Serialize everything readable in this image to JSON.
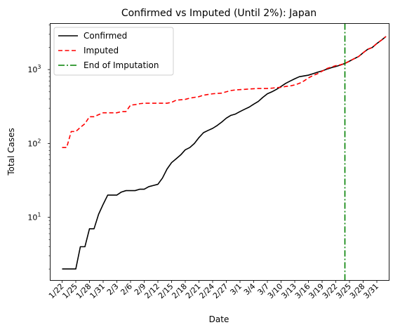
{
  "chart_data": {
    "type": "line",
    "title": "Confirmed vs Imputed (Until 2%): Japan",
    "xlabel": "Date",
    "ylabel": "Total Cases",
    "yscale": "log",
    "ylim": [
      1.4,
      4200
    ],
    "y_ticks": [
      {
        "value": 10,
        "base": "10",
        "exp": "1"
      },
      {
        "value": 100,
        "base": "10",
        "exp": "2"
      },
      {
        "value": 1000,
        "base": "10",
        "exp": "3"
      }
    ],
    "x_start": "1/22",
    "x_tick_labels": [
      "1/22",
      "1/25",
      "1/28",
      "1/31",
      "2/3",
      "2/6",
      "2/9",
      "2/12",
      "2/15",
      "2/18",
      "2/21",
      "2/24",
      "2/27",
      "3/1",
      "3/4",
      "3/7",
      "3/10",
      "3/13",
      "3/16",
      "3/19",
      "3/22",
      "3/25",
      "3/28",
      "3/31"
    ],
    "grid": false,
    "legend_position": "upper-left",
    "series": [
      {
        "name": "Confirmed",
        "color": "#000000",
        "style": "solid",
        "values": [
          2,
          2,
          2,
          2,
          4,
          4,
          7,
          7,
          11,
          15,
          20,
          20,
          20,
          22,
          23,
          23,
          23,
          24,
          24,
          26,
          27,
          28,
          34,
          45,
          55,
          62,
          70,
          82,
          88,
          100,
          120,
          140,
          150,
          160,
          175,
          195,
          220,
          240,
          250,
          270,
          290,
          310,
          340,
          370,
          420,
          470,
          500,
          540,
          590,
          650,
          700,
          750,
          800,
          820,
          840,
          880,
          920,
          960,
          1010,
          1060,
          1100,
          1150,
          1210,
          1300,
          1400,
          1500,
          1690,
          1880,
          1990,
          2250,
          2500,
          2800
        ]
      },
      {
        "name": "Imputed",
        "color": "#ff0000",
        "style": "dashed",
        "values": [
          88,
          88,
          145,
          145,
          165,
          185,
          230,
          230,
          245,
          260,
          260,
          260,
          260,
          270,
          270,
          330,
          335,
          345,
          350,
          350,
          350,
          350,
          350,
          350,
          360,
          385,
          390,
          395,
          410,
          420,
          430,
          450,
          460,
          470,
          475,
          480,
          500,
          520,
          530,
          535,
          540,
          545,
          550,
          555,
          555,
          555,
          560,
          570,
          575,
          590,
          600,
          620,
          650,
          700,
          770,
          830,
          880,
          950,
          1030,
          1080,
          1130,
          1160,
          1210,
          1300,
          1400,
          1500,
          1690,
          1880,
          1990,
          2250,
          2500,
          2800
        ]
      },
      {
        "name": "End of Imputation",
        "color": "#008000",
        "style": "dashdot",
        "x_date": "3/24"
      }
    ]
  }
}
